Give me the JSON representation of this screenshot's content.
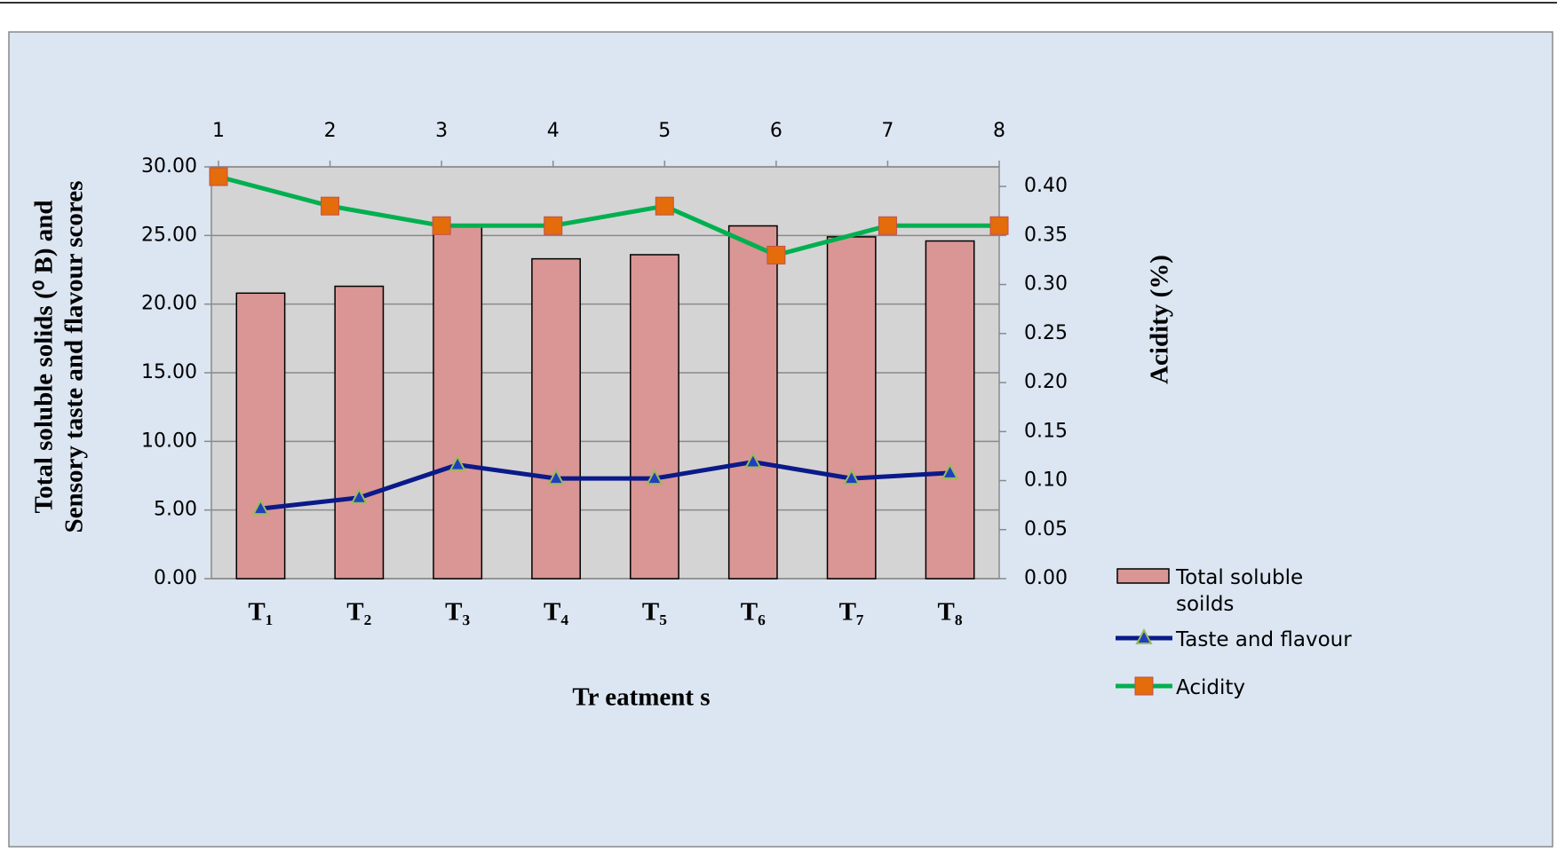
{
  "chart_data": {
    "type": "combo",
    "xlabel": "Tr eatment s",
    "ylabel": [
      "Total soluble solids (⁰ B) and",
      "Sensory taste and flavour scores"
    ],
    "y2label": "Acidity (%)",
    "categories": [
      "T₁",
      "T₂",
      "T₃",
      "T₄",
      "T₅",
      "T₆",
      "T₇",
      "T₈"
    ],
    "series": [
      {
        "name": "Total soluble soilds",
        "type": "bar",
        "color": "#d99694",
        "values": [
          20.8,
          21.3,
          25.7,
          23.3,
          23.6,
          25.7,
          24.9,
          24.6
        ]
      },
      {
        "name": "Taste and flavour",
        "type": "line",
        "color": "#0a1a8a",
        "marker": "triangle",
        "marker_color": "#1f3fbf",
        "values": [
          5.1,
          5.9,
          8.3,
          7.3,
          7.3,
          8.5,
          7.3,
          7.7
        ]
      },
      {
        "name": "Acidity",
        "type": "line",
        "axis": "y2",
        "color": "#00b050",
        "marker": "square",
        "marker_color": "#e46c0a",
        "x": [
          1,
          2,
          3,
          4,
          5,
          6,
          7,
          8
        ],
        "values": [
          0.41,
          0.38,
          0.36,
          0.36,
          0.38,
          0.33,
          0.36,
          0.36
        ]
      }
    ],
    "xlim": [
      1,
      8
    ],
    "xticks": [
      1,
      2,
      3,
      4,
      5,
      6,
      7,
      8
    ],
    "ylim": [
      0,
      30
    ],
    "yticks": [
      {
        "value": 0,
        "label": "0.00"
      },
      {
        "value": 5,
        "label": "5.00"
      },
      {
        "value": 10,
        "label": "10.00"
      },
      {
        "value": 15,
        "label": "15.00"
      },
      {
        "value": 20,
        "label": "20.00"
      },
      {
        "value": 25,
        "label": "25.00"
      },
      {
        "value": 30,
        "label": "30.00"
      }
    ],
    "y2lim": [
      0,
      0.42
    ],
    "y2ticks": [
      {
        "value": 0,
        "label": "0.00"
      },
      {
        "value": 0.05,
        "label": "0.05"
      },
      {
        "value": 0.1,
        "label": "0.10"
      },
      {
        "value": 0.15,
        "label": "0.15"
      },
      {
        "value": 0.2,
        "label": "0.20"
      },
      {
        "value": 0.25,
        "label": "0.25"
      },
      {
        "value": 0.3,
        "label": "0.30"
      },
      {
        "value": 0.35,
        "label": "0.35"
      },
      {
        "value": 0.4,
        "label": "0.40"
      }
    ],
    "grid": true,
    "legend": "right"
  }
}
